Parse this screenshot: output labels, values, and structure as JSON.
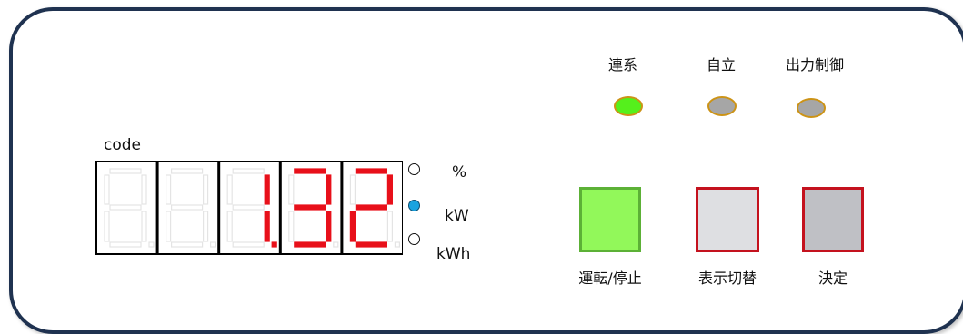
{
  "display": {
    "label": "code",
    "digits": [
      "",
      "",
      "1.",
      "3",
      "2"
    ],
    "seg_on_color": "#e8101a",
    "seg_off_color": "#e4e4e4"
  },
  "units": [
    {
      "label": "%",
      "active": false
    },
    {
      "label": "kW",
      "active": true
    },
    {
      "label": "kWh",
      "active": false
    }
  ],
  "status_leds": [
    {
      "label": "連系",
      "state": "on",
      "color": "#55f01c"
    },
    {
      "label": "自立",
      "state": "off",
      "color": "#a6a6a6"
    },
    {
      "label": "出力制御",
      "state": "off",
      "color": "#a6a6a6"
    }
  ],
  "buttons": [
    {
      "label": "運転/停止",
      "fill": "#92f85a",
      "border": "#5cb136"
    },
    {
      "label": "表示切替",
      "fill": "#dedfe2",
      "border": "#c4121e"
    },
    {
      "label": "決定",
      "fill": "#bfc0c5",
      "border": "#c4121e"
    }
  ]
}
